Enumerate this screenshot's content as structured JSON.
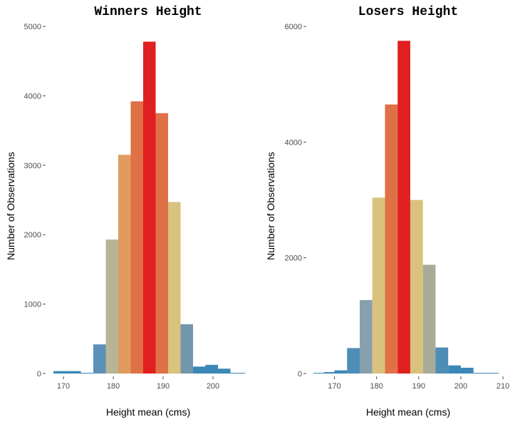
{
  "chart_data": [
    {
      "type": "bar",
      "subtype": "histogram",
      "title": "Winners Height",
      "xlabel": "Height mean (cms)",
      "ylabel": "Number of Observations",
      "xlim": [
        167,
        207
      ],
      "ylim": [
        0,
        5000
      ],
      "x_ticks": [
        170,
        180,
        190,
        200
      ],
      "y_ticks": [
        0,
        1000,
        2000,
        3000,
        4000,
        5000
      ],
      "grid": false,
      "legend": "none",
      "bins": [
        {
          "x0": 168.0,
          "x1": 173.5,
          "value": 35,
          "color": "#3a87b8"
        },
        {
          "x0": 173.5,
          "x1": 176.0,
          "value": 0,
          "color": "#3a87b8"
        },
        {
          "x0": 176.0,
          "x1": 178.5,
          "value": 420,
          "color": "#5b90b8"
        },
        {
          "x0": 178.5,
          "x1": 181.0,
          "value": 1930,
          "color": "#b8b596"
        },
        {
          "x0": 181.0,
          "x1": 183.5,
          "value": 3150,
          "color": "#e09b5e"
        },
        {
          "x0": 183.5,
          "x1": 186.0,
          "value": 3920,
          "color": "#e07045"
        },
        {
          "x0": 186.0,
          "x1": 188.5,
          "value": 4780,
          "color": "#e02020"
        },
        {
          "x0": 188.5,
          "x1": 191.0,
          "value": 3750,
          "color": "#e07045"
        },
        {
          "x0": 191.0,
          "x1": 193.5,
          "value": 2470,
          "color": "#d9c27d"
        },
        {
          "x0": 193.5,
          "x1": 196.0,
          "value": 710,
          "color": "#7496ad"
        },
        {
          "x0": 196.0,
          "x1": 198.5,
          "value": 100,
          "color": "#3a87b8"
        },
        {
          "x0": 198.5,
          "x1": 201.0,
          "value": 125,
          "color": "#3a87b8"
        },
        {
          "x0": 201.0,
          "x1": 203.5,
          "value": 70,
          "color": "#3a87b8"
        },
        {
          "x0": 203.5,
          "x1": 206.5,
          "value": 5,
          "color": "#3a87b8"
        }
      ]
    },
    {
      "type": "bar",
      "subtype": "histogram",
      "title": "Losers Height",
      "xlabel": "Height mean (cms)",
      "ylabel": "Number of Observations",
      "xlim": [
        164,
        211
      ],
      "ylim": [
        0,
        6000
      ],
      "x_ticks": [
        170,
        180,
        190,
        200,
        210
      ],
      "y_ticks": [
        0,
        2000,
        4000,
        6000
      ],
      "grid": false,
      "legend": "none",
      "bins": [
        {
          "x0": 165.0,
          "x1": 167.5,
          "value": 10,
          "color": "#3a87b8"
        },
        {
          "x0": 167.5,
          "x1": 170.0,
          "value": 25,
          "color": "#3a87b8"
        },
        {
          "x0": 170.0,
          "x1": 173.0,
          "value": 55,
          "color": "#3a87b8"
        },
        {
          "x0": 173.0,
          "x1": 176.0,
          "value": 440,
          "color": "#4d8db8"
        },
        {
          "x0": 176.0,
          "x1": 179.0,
          "value": 1270,
          "color": "#87a0ad"
        },
        {
          "x0": 179.0,
          "x1": 182.0,
          "value": 3040,
          "color": "#d9c27d"
        },
        {
          "x0": 182.0,
          "x1": 185.0,
          "value": 4650,
          "color": "#e07045"
        },
        {
          "x0": 185.0,
          "x1": 188.0,
          "value": 5750,
          "color": "#e02020"
        },
        {
          "x0": 188.0,
          "x1": 191.0,
          "value": 3000,
          "color": "#d9c27d"
        },
        {
          "x0": 191.0,
          "x1": 194.0,
          "value": 1880,
          "color": "#a8ac96"
        },
        {
          "x0": 194.0,
          "x1": 197.0,
          "value": 450,
          "color": "#4d8db8"
        },
        {
          "x0": 197.0,
          "x1": 200.0,
          "value": 140,
          "color": "#3a87b8"
        },
        {
          "x0": 200.0,
          "x1": 203.0,
          "value": 100,
          "color": "#3a87b8"
        },
        {
          "x0": 203.0,
          "x1": 209.0,
          "value": 10,
          "color": "#3a87b8"
        }
      ]
    }
  ]
}
